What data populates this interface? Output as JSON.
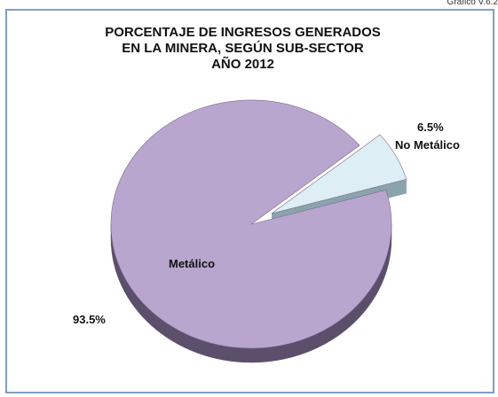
{
  "page_label": "Gráfico V.6.2",
  "chart_data": {
    "type": "pie",
    "title_lines": [
      "PORCENTAJE DE INGRESOS GENERADOS",
      "EN LA MINERA, SEGÚN SUB-SECTOR",
      "AÑO 2012"
    ],
    "categories": [
      "Metálico",
      "No Metálico"
    ],
    "values": [
      93.5,
      6.5
    ],
    "value_labels": [
      "93.5%",
      "6.5%"
    ],
    "exploded": [
      false,
      true
    ],
    "style": "3d",
    "colors": {
      "Metálico": "#b8a6cf",
      "Metálico_side": "#5b4f6b",
      "No Metálico": "#ddeef5",
      "No Metálico_side": "#8aa3ad"
    },
    "frame_border": "#7f9fc3"
  }
}
